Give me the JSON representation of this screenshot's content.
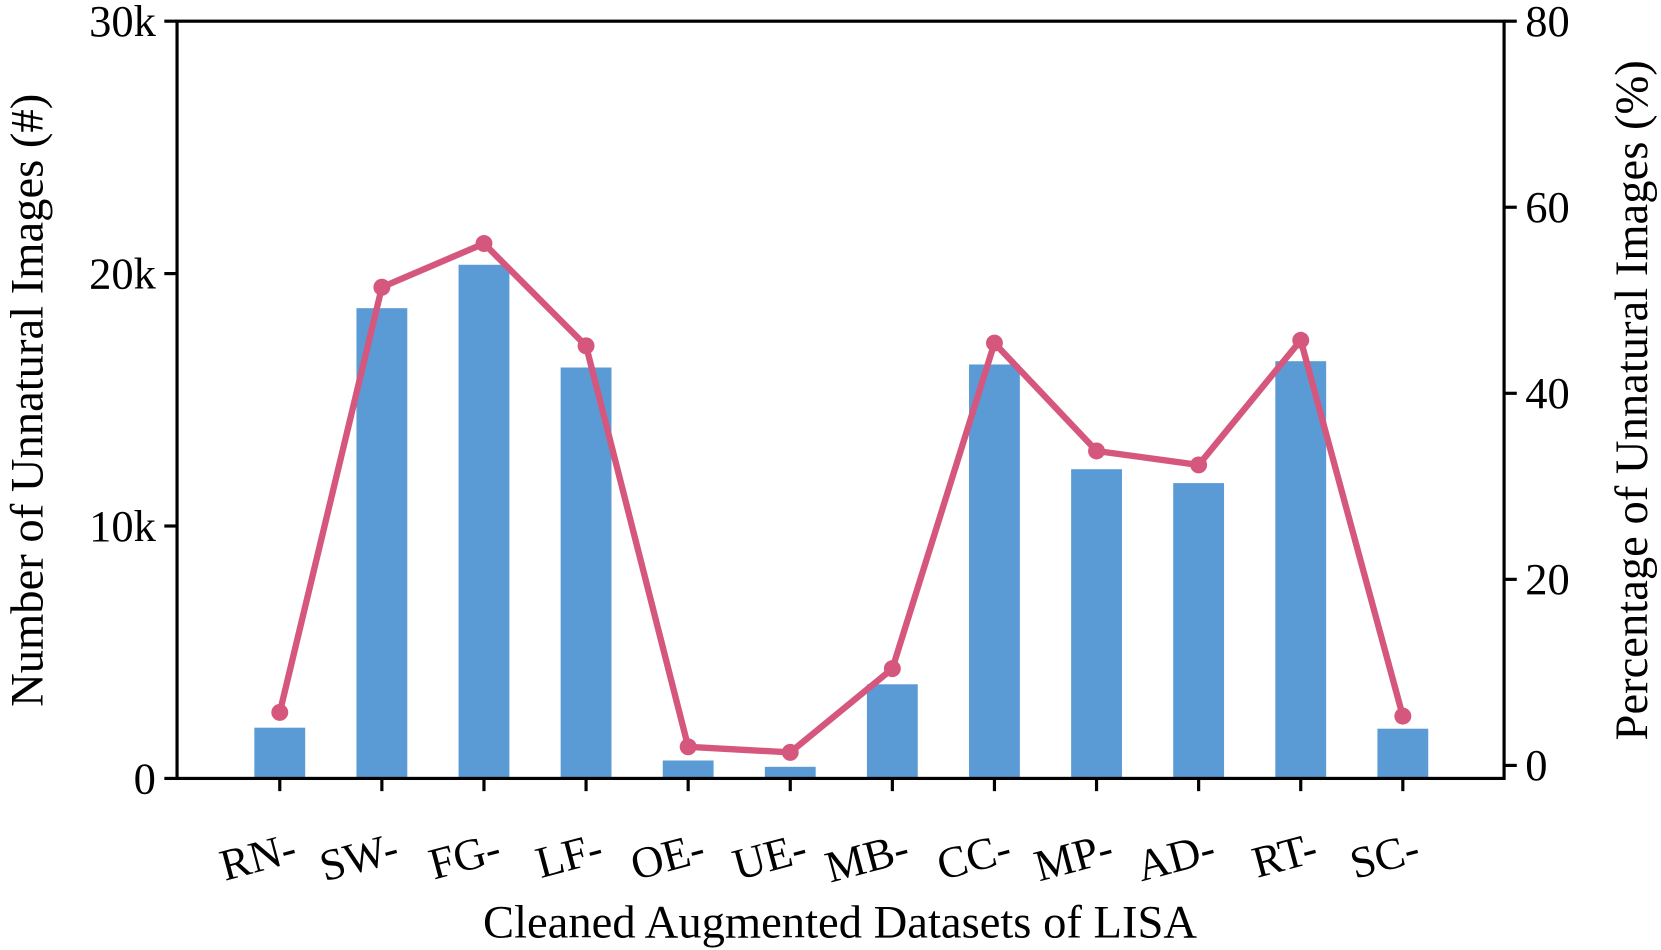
{
  "chart_data": {
    "type": "bar+line",
    "xlabel": "Cleaned Augmented Datasets of LISA",
    "ylabel": "Number of Unnatural Images (#)",
    "ylabel_right": "Percentage of Unnatural Images (%)",
    "categories": [
      "RN-",
      "SW-",
      "FG-",
      "LF-",
      "OE-",
      "UE-",
      "MB-",
      "CC-",
      "MP-",
      "AD-",
      "RT-",
      "SC-"
    ],
    "ylim": [
      0,
      30000
    ],
    "yticks": [
      0,
      10000,
      20000,
      30000
    ],
    "ytick_labels": [
      "0",
      "10k",
      "20k",
      "30k"
    ],
    "ylim_right": [
      -1.4,
      80
    ],
    "yticks_right": [
      0,
      20,
      40,
      60,
      80
    ],
    "ytick_labels_right": [
      "0",
      "20",
      "40",
      "60",
      "80"
    ],
    "grid": false,
    "series": [
      {
        "type": "bar",
        "axis": "left",
        "color": "#5b9bd5",
        "values": [
          2010,
          18630,
          20350,
          16280,
          710,
          460,
          3730,
          16400,
          12250,
          11700,
          16530,
          1970
        ]
      },
      {
        "type": "line",
        "axis": "right",
        "color": "#d6577d",
        "marker": "circle",
        "values": [
          5.7,
          51.4,
          56.1,
          45.1,
          2.0,
          1.4,
          10.4,
          45.4,
          33.8,
          32.3,
          45.7,
          5.3
        ]
      }
    ]
  }
}
